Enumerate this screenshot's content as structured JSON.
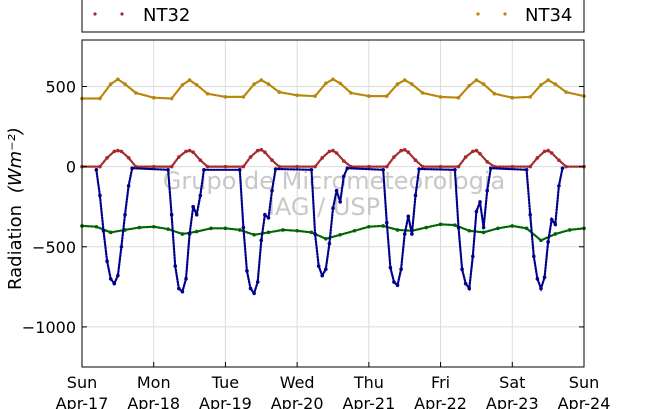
{
  "chart_data": {
    "type": "scatter",
    "title": "",
    "xlabel": "",
    "ylabel": "Radiation",
    "ylabel_unit": "(Wm⁻²)",
    "ylim": [
      -1250,
      790
    ],
    "yticks": [
      500,
      0,
      -500,
      -1000
    ],
    "yticklabels": [
      "500",
      "0",
      "−500",
      "−1000"
    ],
    "xlim": [
      0,
      7
    ],
    "xticks": [
      0,
      1,
      2,
      3,
      4,
      5,
      6,
      7
    ],
    "xticklabels": [
      [
        "Sun",
        "Apr-17"
      ],
      [
        "Mon",
        "Apr-18"
      ],
      [
        "Tue",
        "Apr-19"
      ],
      [
        "Wed",
        "Apr-20"
      ],
      [
        "Thu",
        "Apr-21"
      ],
      [
        "Fri",
        "Apr-22"
      ],
      [
        "Sat",
        "Apr-23"
      ],
      [
        "Sun",
        "Apr-24"
      ]
    ],
    "grid": true,
    "legend_placement": "top",
    "watermark": [
      "Grupo de Micrometeorologia",
      "IAG / USP"
    ],
    "legend": [
      {
        "name": "NT32",
        "color": "#a52a2a"
      },
      {
        "name": "NT34",
        "color": "#b8860b"
      }
    ],
    "series": [
      {
        "name": "NT34",
        "color": "#b8860b",
        "x": [
          0.0,
          0.25,
          0.4,
          0.5,
          0.6,
          0.75,
          1.0,
          1.25,
          1.4,
          1.5,
          1.6,
          1.75,
          2.0,
          2.25,
          2.4,
          2.5,
          2.6,
          2.75,
          3.0,
          3.25,
          3.4,
          3.5,
          3.6,
          3.75,
          4.0,
          4.25,
          4.4,
          4.5,
          4.6,
          4.75,
          5.0,
          5.25,
          5.4,
          5.5,
          5.6,
          5.75,
          6.0,
          6.25,
          6.4,
          6.5,
          6.6,
          6.75,
          7.0
        ],
        "y": [
          425,
          425,
          515,
          545,
          515,
          460,
          430,
          425,
          510,
          540,
          510,
          455,
          435,
          435,
          515,
          540,
          515,
          465,
          445,
          440,
          520,
          545,
          520,
          460,
          440,
          440,
          515,
          540,
          515,
          460,
          435,
          430,
          505,
          540,
          515,
          455,
          430,
          435,
          510,
          540,
          515,
          465,
          440
        ]
      },
      {
        "name": "NT32",
        "color": "#a52a2a",
        "x": [
          0.0,
          0.25,
          0.35,
          0.45,
          0.5,
          0.55,
          0.65,
          0.75,
          1.0,
          1.25,
          1.35,
          1.45,
          1.5,
          1.55,
          1.65,
          1.75,
          2.0,
          2.25,
          2.35,
          2.45,
          2.5,
          2.55,
          2.65,
          2.75,
          3.0,
          3.25,
          3.35,
          3.45,
          3.5,
          3.55,
          3.65,
          3.75,
          4.0,
          4.25,
          4.35,
          4.45,
          4.5,
          4.55,
          4.65,
          4.75,
          5.0,
          5.25,
          5.35,
          5.45,
          5.5,
          5.55,
          5.65,
          5.75,
          6.0,
          6.25,
          6.35,
          6.45,
          6.5,
          6.55,
          6.65,
          6.75,
          7.0
        ],
        "y": [
          0,
          0,
          55,
          95,
          100,
          95,
          55,
          0,
          0,
          0,
          60,
          95,
          100,
          90,
          40,
          0,
          0,
          0,
          60,
          100,
          105,
          90,
          40,
          0,
          0,
          0,
          55,
          95,
          100,
          85,
          35,
          0,
          0,
          0,
          60,
          100,
          105,
          90,
          40,
          0,
          0,
          0,
          60,
          95,
          100,
          80,
          30,
          0,
          0,
          0,
          55,
          95,
          100,
          85,
          40,
          0,
          0
        ]
      },
      {
        "name": "",
        "color": "#006400",
        "x": [
          0.0,
          0.2,
          0.4,
          0.6,
          0.8,
          1.0,
          1.2,
          1.4,
          1.6,
          1.8,
          2.0,
          2.2,
          2.4,
          2.6,
          2.8,
          3.0,
          3.2,
          3.4,
          3.6,
          3.8,
          4.0,
          4.2,
          4.4,
          4.6,
          4.8,
          5.0,
          5.2,
          5.4,
          5.6,
          5.8,
          6.0,
          6.2,
          6.4,
          6.6,
          6.8,
          7.0
        ],
        "y": [
          -370,
          -375,
          -410,
          -395,
          -380,
          -375,
          -390,
          -420,
          -405,
          -385,
          -385,
          -395,
          -425,
          -410,
          -395,
          -400,
          -410,
          -450,
          -425,
          -400,
          -375,
          -370,
          -395,
          -400,
          -380,
          -360,
          -365,
          -400,
          -410,
          -385,
          -370,
          -385,
          -460,
          -420,
          -395,
          -385
        ]
      },
      {
        "name": "",
        "color": "#00008b",
        "x": [
          0.2,
          0.25,
          0.3,
          0.35,
          0.4,
          0.45,
          0.5,
          0.55,
          0.6,
          0.65,
          0.7,
          1.2,
          1.25,
          1.3,
          1.35,
          1.4,
          1.45,
          1.5,
          1.55,
          1.6,
          1.65,
          1.7,
          2.2,
          2.25,
          2.3,
          2.35,
          2.4,
          2.45,
          2.5,
          2.55,
          2.6,
          2.65,
          2.7,
          3.2,
          3.25,
          3.3,
          3.35,
          3.4,
          3.45,
          3.5,
          3.55,
          3.6,
          3.65,
          3.7,
          4.2,
          4.25,
          4.3,
          4.35,
          4.4,
          4.45,
          4.5,
          4.55,
          4.6,
          4.65,
          4.7,
          5.2,
          5.25,
          5.3,
          5.35,
          5.4,
          5.45,
          5.5,
          5.55,
          5.6,
          5.65,
          5.7,
          6.2,
          6.25,
          6.3,
          6.35,
          6.4,
          6.45,
          6.5,
          6.55,
          6.6,
          6.65,
          6.7
        ],
        "y": [
          -20,
          -180,
          -400,
          -590,
          -700,
          -730,
          -680,
          -500,
          -300,
          -120,
          -10,
          -20,
          -300,
          -620,
          -760,
          -780,
          -700,
          -420,
          -250,
          -300,
          -180,
          -20,
          -20,
          -380,
          -650,
          -760,
          -790,
          -720,
          -460,
          -300,
          -320,
          -150,
          -15,
          -20,
          -420,
          -620,
          -680,
          -640,
          -480,
          -260,
          -150,
          -220,
          -60,
          -10,
          -20,
          -350,
          -630,
          -720,
          -740,
          -640,
          -420,
          -310,
          -420,
          -180,
          -15,
          -20,
          -380,
          -640,
          -730,
          -760,
          -560,
          -280,
          -220,
          -380,
          -150,
          -10,
          -20,
          -300,
          -560,
          -700,
          -760,
          -690,
          -470,
          -330,
          -360,
          -120,
          -10
        ]
      }
    ]
  }
}
